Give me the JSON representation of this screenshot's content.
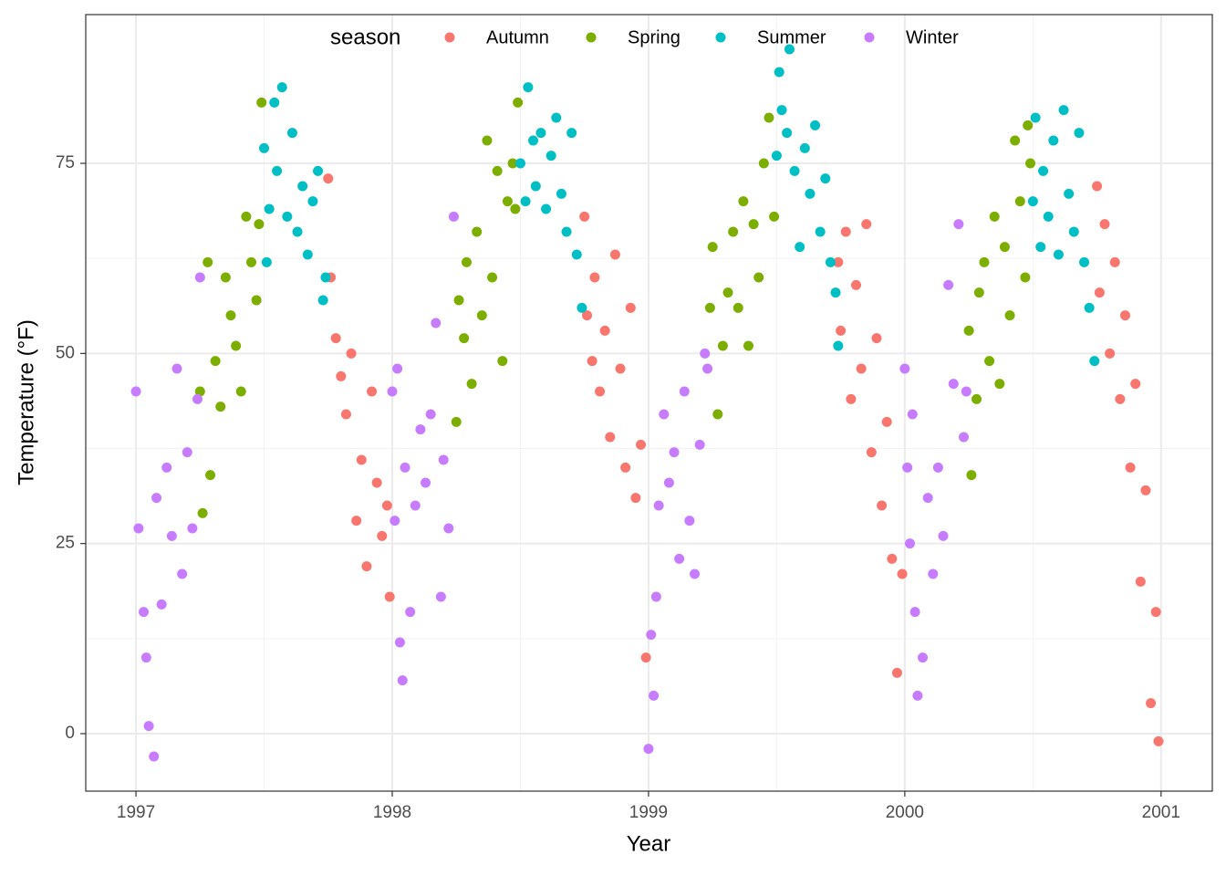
{
  "chart_data": {
    "type": "scatter",
    "xlabel": "Year",
    "ylabel": "Temperature (°F)",
    "legend_title": "season",
    "legend_position": "top",
    "grid": true,
    "xlim": [
      1996.804,
      2001.2
    ],
    "ylim": [
      -7.56,
      94.56
    ],
    "xticks": [
      1997,
      1998,
      1999,
      2000,
      2001
    ],
    "yticks": [
      0,
      25,
      50,
      75
    ],
    "series": [
      {
        "name": "Autumn",
        "color": "#F8766D",
        "x": [
          1997.75,
          1997.76,
          1997.78,
          1997.8,
          1997.82,
          1997.84,
          1997.86,
          1997.88,
          1997.9,
          1997.92,
          1997.94,
          1997.96,
          1997.98,
          1997.99,
          1998.75,
          1998.76,
          1998.78,
          1998.79,
          1998.81,
          1998.83,
          1998.85,
          1998.87,
          1998.89,
          1998.91,
          1998.93,
          1998.95,
          1998.97,
          1998.99,
          1999.74,
          1999.75,
          1999.77,
          1999.79,
          1999.81,
          1999.83,
          1999.85,
          1999.87,
          1999.89,
          1999.91,
          1999.93,
          1999.95,
          1999.97,
          1999.99,
          2000.75,
          2000.76,
          2000.78,
          2000.8,
          2000.82,
          2000.84,
          2000.86,
          2000.88,
          2000.9,
          2000.92,
          2000.94,
          2000.96,
          2000.98,
          2000.99
        ],
        "values": [
          73,
          60,
          52,
          47,
          42,
          50,
          28,
          36,
          22,
          45,
          33,
          26,
          30,
          18,
          68,
          55,
          49,
          60,
          45,
          53,
          39,
          63,
          48,
          35,
          56,
          31,
          38,
          10,
          62,
          53,
          66,
          44,
          59,
          48,
          67,
          37,
          52,
          30,
          41,
          23,
          8,
          21,
          72,
          58,
          67,
          50,
          62,
          44,
          55,
          35,
          46,
          20,
          32,
          4,
          16,
          -1
        ]
      },
      {
        "name": "Spring",
        "color": "#7CAE00",
        "x": [
          1997.25,
          1997.26,
          1997.28,
          1997.29,
          1997.31,
          1997.33,
          1997.35,
          1997.37,
          1997.39,
          1997.41,
          1997.43,
          1997.45,
          1997.47,
          1997.48,
          1997.49,
          1998.25,
          1998.26,
          1998.28,
          1998.29,
          1998.31,
          1998.33,
          1998.35,
          1998.37,
          1998.39,
          1998.41,
          1998.43,
          1998.45,
          1998.47,
          1998.48,
          1998.49,
          1999.24,
          1999.25,
          1999.27,
          1999.29,
          1999.31,
          1999.33,
          1999.35,
          1999.37,
          1999.39,
          1999.41,
          1999.43,
          1999.45,
          1999.47,
          1999.49,
          2000.25,
          2000.26,
          2000.28,
          2000.29,
          2000.31,
          2000.33,
          2000.35,
          2000.37,
          2000.39,
          2000.41,
          2000.43,
          2000.45,
          2000.47,
          2000.48,
          2000.49
        ],
        "values": [
          45,
          29,
          62,
          34,
          49,
          43,
          60,
          55,
          51,
          45,
          68,
          62,
          57,
          67,
          83,
          41,
          57,
          52,
          62,
          46,
          66,
          55,
          78,
          60,
          74,
          49,
          70,
          75,
          69,
          83,
          56,
          64,
          42,
          51,
          58,
          66,
          56,
          70,
          51,
          67,
          60,
          75,
          81,
          68,
          53,
          34,
          44,
          58,
          62,
          49,
          68,
          46,
          64,
          55,
          78,
          70,
          60,
          80,
          75
        ]
      },
      {
        "name": "Summer",
        "color": "#00BFC4",
        "x": [
          1997.5,
          1997.51,
          1997.52,
          1997.54,
          1997.55,
          1997.57,
          1997.59,
          1997.61,
          1997.63,
          1997.65,
          1997.67,
          1997.69,
          1997.71,
          1997.73,
          1997.74,
          1998.5,
          1998.52,
          1998.53,
          1998.55,
          1998.56,
          1998.58,
          1998.6,
          1998.62,
          1998.64,
          1998.66,
          1998.68,
          1998.7,
          1998.72,
          1998.74,
          1999.5,
          1999.51,
          1999.52,
          1999.54,
          1999.55,
          1999.57,
          1999.59,
          1999.61,
          1999.63,
          1999.65,
          1999.67,
          1999.69,
          1999.71,
          1999.73,
          1999.74,
          2000.5,
          2000.51,
          2000.53,
          2000.54,
          2000.56,
          2000.58,
          2000.6,
          2000.62,
          2000.64,
          2000.66,
          2000.68,
          2000.7,
          2000.72,
          2000.74
        ],
        "values": [
          77,
          62,
          69,
          83,
          74,
          85,
          68,
          79,
          66,
          72,
          63,
          70,
          74,
          57,
          60,
          75,
          70,
          85,
          78,
          72,
          79,
          69,
          76,
          81,
          71,
          66,
          79,
          63,
          56,
          76,
          87,
          82,
          79,
          90,
          74,
          64,
          77,
          71,
          80,
          66,
          73,
          62,
          58,
          51,
          70,
          81,
          64,
          74,
          68,
          78,
          63,
          82,
          71,
          66,
          79,
          62,
          56,
          49
        ]
      },
      {
        "name": "Winter",
        "color": "#C77CFF",
        "x": [
          1997.0,
          1997.01,
          1997.03,
          1997.04,
          1997.05,
          1997.07,
          1997.08,
          1997.1,
          1997.12,
          1997.14,
          1997.16,
          1997.18,
          1997.2,
          1997.22,
          1997.24,
          1997.25,
          1998.0,
          1998.01,
          1998.02,
          1998.03,
          1998.04,
          1998.05,
          1998.07,
          1998.09,
          1998.11,
          1998.13,
          1998.15,
          1998.17,
          1998.19,
          1998.2,
          1998.22,
          1998.24,
          1999.0,
          1999.01,
          1999.02,
          1999.03,
          1999.04,
          1999.06,
          1999.08,
          1999.1,
          1999.12,
          1999.14,
          1999.16,
          1999.18,
          1999.2,
          1999.22,
          1999.23,
          2000.0,
          2000.01,
          2000.02,
          2000.03,
          2000.04,
          2000.05,
          2000.07,
          2000.09,
          2000.11,
          2000.13,
          2000.15,
          2000.17,
          2000.19,
          2000.21,
          2000.23,
          2000.24
        ],
        "values": [
          45,
          27,
          16,
          10,
          1,
          -3,
          31,
          17,
          35,
          26,
          48,
          21,
          37,
          27,
          44,
          60,
          45,
          28,
          48,
          12,
          7,
          35,
          16,
          30,
          40,
          33,
          42,
          54,
          18,
          36,
          27,
          68,
          -2,
          13,
          5,
          18,
          30,
          42,
          33,
          37,
          23,
          45,
          28,
          21,
          38,
          50,
          48,
          48,
          35,
          25,
          42,
          16,
          5,
          10,
          31,
          21,
          35,
          26,
          59,
          46,
          67,
          39,
          45
        ]
      }
    ]
  }
}
